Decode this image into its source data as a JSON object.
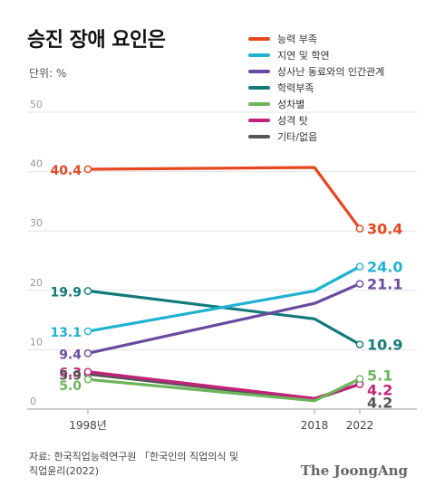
{
  "title": "승진 장애 요인은",
  "unit_label": "단위: %",
  "source": {
    "line1": "자료: 한국직업능력연구원 「한국인의 직업의식 및",
    "line2": "직업윤리(2022)"
  },
  "brand": "The JoongAng",
  "chart_data": {
    "type": "line",
    "categories": [
      "1998년",
      "2018",
      "2022"
    ],
    "x": [
      1998,
      2018,
      2022
    ],
    "ylim": [
      0,
      50
    ],
    "yticks": [
      "0",
      "10",
      "20",
      "30",
      "40",
      "50"
    ],
    "grid": true,
    "legend_position": "top-right",
    "series": [
      {
        "name": "능력 부족",
        "color": "#e8461e",
        "values": [
          40.4,
          40.7,
          30.4
        ],
        "labels": [
          "40.4",
          "",
          "30.4"
        ]
      },
      {
        "name": "지연 및 학연",
        "color": "#1fb3d1",
        "values": [
          13.1,
          19.9,
          24.0
        ],
        "labels": [
          "13.1",
          "",
          "24.0"
        ]
      },
      {
        "name": "상사난 동료와의 인간관계",
        "color": "#6a4aa0",
        "values": [
          9.4,
          17.8,
          21.1
        ],
        "labels": [
          "9.4",
          "",
          "21.1"
        ]
      },
      {
        "name": "학력부족",
        "color": "#127a7a",
        "values": [
          19.9,
          15.2,
          10.9
        ],
        "labels": [
          "19.9",
          "",
          "10.9"
        ]
      },
      {
        "name": "성차별",
        "color": "#6cb55a",
        "values": [
          5.0,
          1.4,
          5.1
        ],
        "labels": [
          "5.0",
          "",
          "5.1"
        ]
      },
      {
        "name": "성격 탓",
        "color": "#c4227a",
        "values": [
          6.3,
          1.8,
          4.2
        ],
        "labels": [
          "6.3",
          "",
          "4.2"
        ]
      },
      {
        "name": "기타/없음",
        "color": "#555555",
        "values": [
          5.9,
          1.6,
          4.2
        ],
        "labels": [
          "5.9",
          "",
          "4.2"
        ]
      }
    ]
  }
}
